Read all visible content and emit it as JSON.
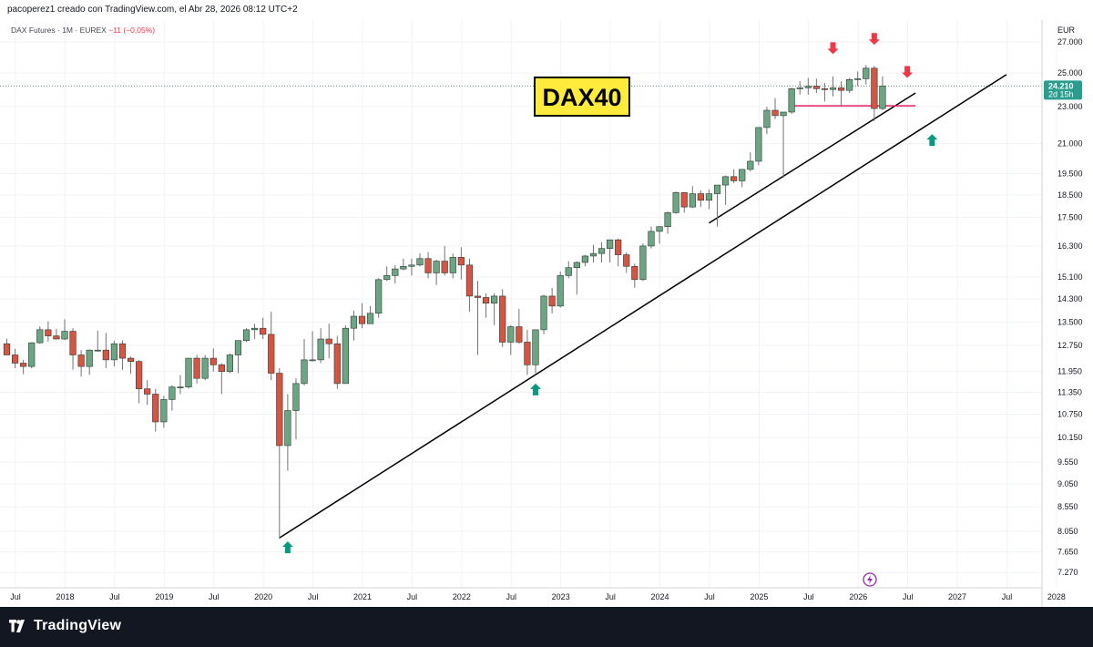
{
  "header": {
    "credit": "pacoperez1 creado con TradingView.com, el Abr 28, 2026 08:12 UTC+2"
  },
  "symbol_info": {
    "name": "DAX Futures · 1M · EUREX",
    "change": "−11 (−0,05%)"
  },
  "footer": {
    "brand": "TradingView"
  },
  "colors": {
    "up": "#6ba583",
    "down": "#d75442",
    "wick": "#737375",
    "arrow_up": "#089981",
    "arrow_down": "#f23645",
    "support_line": "#e91e63",
    "label_bg": "#ffeb3b",
    "price_tag": "#2a9d8f"
  },
  "icons": [
    "tradingview-logo-icon",
    "lightning-icon"
  ],
  "chart_data": {
    "type": "candlestick",
    "title": "DAX40",
    "currency": "EUR",
    "y_scale": "log",
    "ylim": [
      7000,
      28500
    ],
    "y_ticks": [
      "27.000",
      "25.000",
      "23.000",
      "21.000",
      "19.500",
      "18.500",
      "17.500",
      "16.300",
      "15.100",
      "14.300",
      "13.500",
      "12.750",
      "11.950",
      "11.350",
      "10.750",
      "10.150",
      "9.550",
      "9.050",
      "8.550",
      "8.050",
      "7.650",
      "7.270"
    ],
    "x_ticks": [
      "Jul",
      "2018",
      "Jul",
      "2019",
      "Jul",
      "2020",
      "Jul",
      "2021",
      "Jul",
      "2022",
      "Jul",
      "2023",
      "Jul",
      "2024",
      "Jul",
      "2025",
      "Jul",
      "2026",
      "Jul",
      "2027",
      "Jul",
      "2028"
    ],
    "last_price": {
      "label": "24.210",
      "countdown": "2d 15h",
      "value": 24210
    },
    "candles": [
      {
        "d": "2017-06",
        "o": 12800,
        "h": 12960,
        "l": 12450,
        "c": 12450
      },
      {
        "d": "2017-07",
        "o": 12450,
        "h": 12640,
        "l": 12050,
        "c": 12200
      },
      {
        "d": "2017-08",
        "o": 12200,
        "h": 12300,
        "l": 11870,
        "c": 12100
      },
      {
        "d": "2017-09",
        "o": 12100,
        "h": 12850,
        "l": 12050,
        "c": 12830
      },
      {
        "d": "2017-10",
        "o": 12830,
        "h": 13360,
        "l": 12800,
        "c": 13250
      },
      {
        "d": "2017-11",
        "o": 13250,
        "h": 13530,
        "l": 12870,
        "c": 13050
      },
      {
        "d": "2017-12",
        "o": 13050,
        "h": 13280,
        "l": 12980,
        "c": 12950
      },
      {
        "d": "2018-01",
        "o": 12950,
        "h": 13600,
        "l": 12920,
        "c": 13200
      },
      {
        "d": "2018-02",
        "o": 13200,
        "h": 13300,
        "l": 12000,
        "c": 12450
      },
      {
        "d": "2018-03",
        "o": 12450,
        "h": 12600,
        "l": 11800,
        "c": 12100
      },
      {
        "d": "2018-04",
        "o": 12100,
        "h": 12620,
        "l": 11850,
        "c": 12600
      },
      {
        "d": "2018-05",
        "o": 12600,
        "h": 13220,
        "l": 12550,
        "c": 12600
      },
      {
        "d": "2018-06",
        "o": 12600,
        "h": 13150,
        "l": 12050,
        "c": 12300
      },
      {
        "d": "2018-07",
        "o": 12300,
        "h": 12900,
        "l": 12100,
        "c": 12800
      },
      {
        "d": "2018-08",
        "o": 12800,
        "h": 12900,
        "l": 12000,
        "c": 12350
      },
      {
        "d": "2018-09",
        "o": 12350,
        "h": 12400,
        "l": 11880,
        "c": 12250
      },
      {
        "d": "2018-10",
        "o": 12250,
        "h": 12300,
        "l": 11050,
        "c": 11450
      },
      {
        "d": "2018-11",
        "o": 11450,
        "h": 11700,
        "l": 11000,
        "c": 11300
      },
      {
        "d": "2018-12",
        "o": 11300,
        "h": 11450,
        "l": 10300,
        "c": 10550
      },
      {
        "d": "2019-01",
        "o": 10550,
        "h": 11250,
        "l": 10400,
        "c": 11150
      },
      {
        "d": "2019-02",
        "o": 11150,
        "h": 11550,
        "l": 10850,
        "c": 11500
      },
      {
        "d": "2019-03",
        "o": 11500,
        "h": 11850,
        "l": 11300,
        "c": 11500
      },
      {
        "d": "2019-04",
        "o": 11500,
        "h": 12350,
        "l": 11450,
        "c": 12350
      },
      {
        "d": "2019-05",
        "o": 12350,
        "h": 12450,
        "l": 11600,
        "c": 11750
      },
      {
        "d": "2019-06",
        "o": 11750,
        "h": 12450,
        "l": 11700,
        "c": 12350
      },
      {
        "d": "2019-07",
        "o": 12350,
        "h": 12650,
        "l": 11950,
        "c": 12150
      },
      {
        "d": "2019-08",
        "o": 12150,
        "h": 12200,
        "l": 11300,
        "c": 11950
      },
      {
        "d": "2019-09",
        "o": 11950,
        "h": 12500,
        "l": 11900,
        "c": 12450
      },
      {
        "d": "2019-10",
        "o": 12450,
        "h": 12900,
        "l": 11900,
        "c": 12900
      },
      {
        "d": "2019-11",
        "o": 12900,
        "h": 13300,
        "l": 12850,
        "c": 13250
      },
      {
        "d": "2019-12",
        "o": 13250,
        "h": 13450,
        "l": 12950,
        "c": 13300
      },
      {
        "d": "2020-01",
        "o": 13300,
        "h": 13650,
        "l": 12950,
        "c": 13100
      },
      {
        "d": "2020-02",
        "o": 13100,
        "h": 13850,
        "l": 11700,
        "c": 11900
      },
      {
        "d": "2020-03",
        "o": 11900,
        "h": 12050,
        "l": 7900,
        "c": 9950
      },
      {
        "d": "2020-04",
        "o": 9950,
        "h": 11300,
        "l": 9350,
        "c": 10850
      },
      {
        "d": "2020-05",
        "o": 10850,
        "h": 11750,
        "l": 10100,
        "c": 11600
      },
      {
        "d": "2020-06",
        "o": 11600,
        "h": 12950,
        "l": 11550,
        "c": 12300
      },
      {
        "d": "2020-07",
        "o": 12300,
        "h": 13200,
        "l": 12250,
        "c": 12300
      },
      {
        "d": "2020-08",
        "o": 12300,
        "h": 13300,
        "l": 12200,
        "c": 12950
      },
      {
        "d": "2020-09",
        "o": 12950,
        "h": 13450,
        "l": 12350,
        "c": 12800
      },
      {
        "d": "2020-10",
        "o": 12800,
        "h": 13050,
        "l": 11450,
        "c": 11600
      },
      {
        "d": "2020-11",
        "o": 11600,
        "h": 13400,
        "l": 11600,
        "c": 13300
      },
      {
        "d": "2020-12",
        "o": 13300,
        "h": 13900,
        "l": 12900,
        "c": 13700
      },
      {
        "d": "2021-01",
        "o": 13700,
        "h": 14150,
        "l": 13300,
        "c": 13450
      },
      {
        "d": "2021-02",
        "o": 13450,
        "h": 14050,
        "l": 13450,
        "c": 13800
      },
      {
        "d": "2021-03",
        "o": 13800,
        "h": 15050,
        "l": 13650,
        "c": 15000
      },
      {
        "d": "2021-04",
        "o": 15000,
        "h": 15500,
        "l": 14950,
        "c": 15150
      },
      {
        "d": "2021-05",
        "o": 15150,
        "h": 15550,
        "l": 14850,
        "c": 15400
      },
      {
        "d": "2021-06",
        "o": 15400,
        "h": 15800,
        "l": 15350,
        "c": 15500
      },
      {
        "d": "2021-07",
        "o": 15500,
        "h": 15800,
        "l": 15150,
        "c": 15550
      },
      {
        "d": "2021-08",
        "o": 15550,
        "h": 16000,
        "l": 15500,
        "c": 15800
      },
      {
        "d": "2021-09",
        "o": 15800,
        "h": 16050,
        "l": 15050,
        "c": 15250
      },
      {
        "d": "2021-10",
        "o": 15250,
        "h": 15750,
        "l": 14800,
        "c": 15700
      },
      {
        "d": "2021-11",
        "o": 15700,
        "h": 16300,
        "l": 15150,
        "c": 15250
      },
      {
        "d": "2021-12",
        "o": 15250,
        "h": 16000,
        "l": 15050,
        "c": 15850
      },
      {
        "d": "2022-01",
        "o": 15850,
        "h": 16250,
        "l": 15000,
        "c": 15550
      },
      {
        "d": "2022-02",
        "o": 15550,
        "h": 15800,
        "l": 13850,
        "c": 14400
      },
      {
        "d": "2022-03",
        "o": 14400,
        "h": 14950,
        "l": 12450,
        "c": 14350
      },
      {
        "d": "2022-04",
        "o": 14350,
        "h": 14500,
        "l": 13650,
        "c": 14150
      },
      {
        "d": "2022-05",
        "o": 14150,
        "h": 14500,
        "l": 13400,
        "c": 14400
      },
      {
        "d": "2022-06",
        "o": 14400,
        "h": 14650,
        "l": 12700,
        "c": 12850
      },
      {
        "d": "2022-07",
        "o": 12850,
        "h": 13400,
        "l": 12450,
        "c": 13350
      },
      {
        "d": "2022-08",
        "o": 13350,
        "h": 13950,
        "l": 12800,
        "c": 12850
      },
      {
        "d": "2022-09",
        "o": 12850,
        "h": 13250,
        "l": 11850,
        "c": 12150
      },
      {
        "d": "2022-10",
        "o": 12150,
        "h": 13250,
        "l": 11900,
        "c": 13250
      },
      {
        "d": "2022-11",
        "o": 13250,
        "h": 14450,
        "l": 13100,
        "c": 14400
      },
      {
        "d": "2022-12",
        "o": 14400,
        "h": 14700,
        "l": 13800,
        "c": 14050
      },
      {
        "d": "2023-01",
        "o": 14050,
        "h": 15300,
        "l": 14000,
        "c": 15150
      },
      {
        "d": "2023-02",
        "o": 15150,
        "h": 15700,
        "l": 15050,
        "c": 15450
      },
      {
        "d": "2023-03",
        "o": 15450,
        "h": 15700,
        "l": 14450,
        "c": 15650
      },
      {
        "d": "2023-04",
        "o": 15650,
        "h": 15950,
        "l": 15500,
        "c": 15900
      },
      {
        "d": "2023-05",
        "o": 15900,
        "h": 16350,
        "l": 15650,
        "c": 16000
      },
      {
        "d": "2023-06",
        "o": 16000,
        "h": 16450,
        "l": 15650,
        "c": 16200
      },
      {
        "d": "2023-07",
        "o": 16200,
        "h": 16550,
        "l": 15650,
        "c": 16550
      },
      {
        "d": "2023-08",
        "o": 16550,
        "h": 16600,
        "l": 15500,
        "c": 15950
      },
      {
        "d": "2023-09",
        "o": 15950,
        "h": 16050,
        "l": 15250,
        "c": 15500
      },
      {
        "d": "2023-10",
        "o": 15500,
        "h": 15600,
        "l": 14700,
        "c": 15000
      },
      {
        "d": "2023-11",
        "o": 15000,
        "h": 16400,
        "l": 14950,
        "c": 16300
      },
      {
        "d": "2023-12",
        "o": 16300,
        "h": 17100,
        "l": 16200,
        "c": 16900
      },
      {
        "d": "2024-01",
        "o": 16900,
        "h": 17100,
        "l": 16400,
        "c": 17100
      },
      {
        "d": "2024-02",
        "o": 17100,
        "h": 17750,
        "l": 16800,
        "c": 17700
      },
      {
        "d": "2024-03",
        "o": 17700,
        "h": 18650,
        "l": 17650,
        "c": 18600
      },
      {
        "d": "2024-04",
        "o": 18600,
        "h": 18600,
        "l": 17700,
        "c": 17950
      },
      {
        "d": "2024-05",
        "o": 17950,
        "h": 18900,
        "l": 17900,
        "c": 18550
      },
      {
        "d": "2024-06",
        "o": 18550,
        "h": 18700,
        "l": 17950,
        "c": 18250
      },
      {
        "d": "2024-07",
        "o": 18250,
        "h": 18750,
        "l": 17850,
        "c": 18550
      },
      {
        "d": "2024-08",
        "o": 18550,
        "h": 18900,
        "l": 17100,
        "c": 18950
      },
      {
        "d": "2024-09",
        "o": 18950,
        "h": 19400,
        "l": 18050,
        "c": 19350
      },
      {
        "d": "2024-10",
        "o": 19350,
        "h": 19700,
        "l": 19050,
        "c": 19150
      },
      {
        "d": "2024-11",
        "o": 19150,
        "h": 19600,
        "l": 18850,
        "c": 19700
      },
      {
        "d": "2024-12",
        "o": 19700,
        "h": 20550,
        "l": 19600,
        "c": 20100
      },
      {
        "d": "2025-01",
        "o": 20100,
        "h": 21800,
        "l": 19900,
        "c": 21850
      },
      {
        "d": "2025-02",
        "o": 21850,
        "h": 23000,
        "l": 21500,
        "c": 22800
      },
      {
        "d": "2025-03",
        "o": 22800,
        "h": 23500,
        "l": 22300,
        "c": 22500
      },
      {
        "d": "2025-04",
        "o": 22500,
        "h": 22700,
        "l": 19300,
        "c": 22700
      },
      {
        "d": "2025-05",
        "o": 22700,
        "h": 24100,
        "l": 22600,
        "c": 24050
      },
      {
        "d": "2025-06",
        "o": 24050,
        "h": 24500,
        "l": 23700,
        "c": 24100
      },
      {
        "d": "2025-07",
        "o": 24100,
        "h": 24700,
        "l": 23700,
        "c": 24200
      },
      {
        "d": "2025-08",
        "o": 24200,
        "h": 24650,
        "l": 23800,
        "c": 24050
      },
      {
        "d": "2025-09",
        "o": 24050,
        "h": 24400,
        "l": 23300,
        "c": 24000
      },
      {
        "d": "2025-10",
        "o": 24000,
        "h": 24800,
        "l": 23600,
        "c": 24100
      },
      {
        "d": "2025-11",
        "o": 24100,
        "h": 24500,
        "l": 23000,
        "c": 23950
      },
      {
        "d": "2025-12",
        "o": 23950,
        "h": 24700,
        "l": 23800,
        "c": 24600
      },
      {
        "d": "2026-01",
        "o": 24600,
        "h": 25100,
        "l": 24200,
        "c": 24650
      },
      {
        "d": "2026-02",
        "o": 24650,
        "h": 25500,
        "l": 24300,
        "c": 25300
      },
      {
        "d": "2026-03",
        "o": 25300,
        "h": 25450,
        "l": 22200,
        "c": 22900
      },
      {
        "d": "2026-04",
        "o": 22900,
        "h": 24800,
        "l": 22800,
        "c": 24210
      }
    ],
    "trendlines": [
      {
        "from": {
          "d": "2020-03",
          "v": 7920
        },
        "to": {
          "d": "2027-07",
          "v": 24900
        }
      },
      {
        "from": {
          "d": "2024-07",
          "v": 17250
        },
        "to": {
          "d": "2026-08",
          "v": 23800
        }
      }
    ],
    "support_line": {
      "from": "2025-05",
      "to": "2026-08",
      "v": 23050
    },
    "markers": [
      {
        "type": "arrow-up",
        "d": "2020-04",
        "v": 7850
      },
      {
        "type": "arrow-up",
        "d": "2022-10",
        "v": 11600
      },
      {
        "type": "arrow-up",
        "d": "2026-10",
        "v": 21500
      },
      {
        "type": "arrow-down",
        "d": "2025-10",
        "v": 26200
      },
      {
        "type": "arrow-down",
        "d": "2026-03",
        "v": 26800
      },
      {
        "type": "arrow-down",
        "d": "2026-07",
        "v": 24700
      }
    ]
  }
}
